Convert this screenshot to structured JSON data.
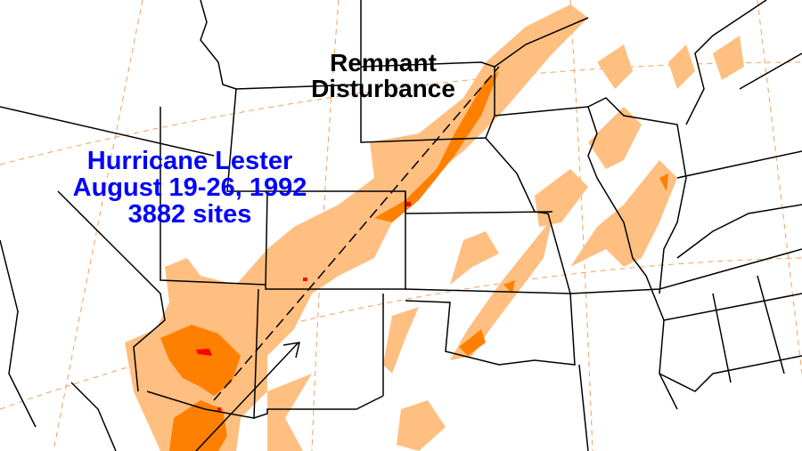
{
  "map": {
    "title_lines": [
      "Hurricane Lester",
      "August 19-26, 1992",
      "3882 sites"
    ],
    "annotation_lines": [
      "Remnant",
      "Disturbance"
    ],
    "colors": {
      "rain_light": "#ffbf80",
      "rain_medium": "#ff8000",
      "rain_heavy": "#ff0000",
      "title_text": "#0000ff",
      "graticule": "#f0a060",
      "boundaries": "#000000"
    }
  }
}
